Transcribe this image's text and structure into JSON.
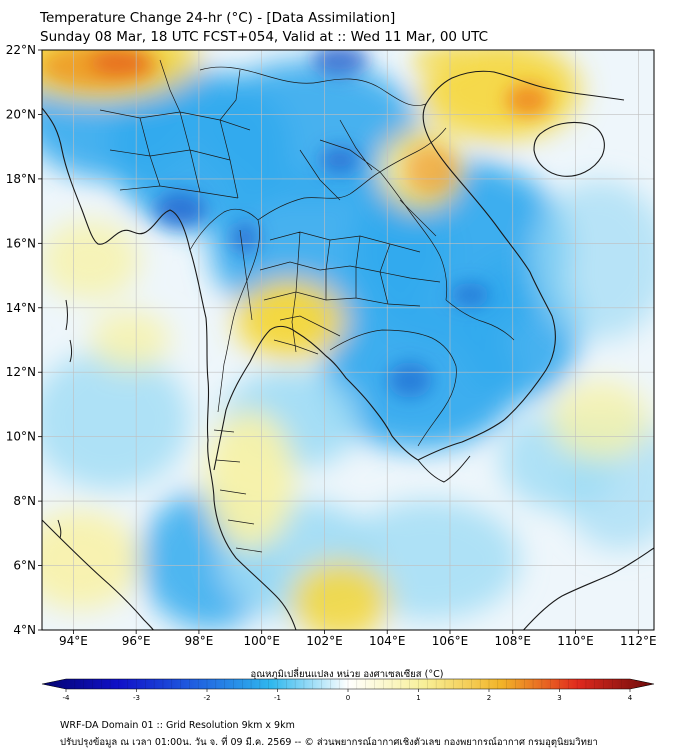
{
  "header": {
    "title_line1": "Temperature Change 24-hr (°C) - [Data Assimilation]",
    "title_line2": "Sunday 08 Mar, 18 UTC FCST+054, Valid at :: Wed 11 Mar, 00 UTC"
  },
  "map": {
    "lat_labels": [
      "22°N",
      "20°N",
      "18°N",
      "16°N",
      "14°N",
      "12°N",
      "10°N",
      "8°N",
      "6°N",
      "4°N"
    ],
    "lon_labels": [
      "94°E",
      "96°E",
      "98°E",
      "100°E",
      "102°E",
      "104°E",
      "106°E",
      "108°E",
      "110°E",
      "112°E"
    ],
    "lat_range": [
      4,
      22
    ],
    "lon_range": [
      93,
      112.5
    ],
    "colors": {
      "cold_strong": "#1a55c8",
      "cold": "#33aaee",
      "cool": "#9fdcf5",
      "neutral": "#eef6fb",
      "warm_light": "#f8f2a8",
      "warm": "#f5d840",
      "hot": "#f08a20",
      "hottest": "#d4241e",
      "grid": "#bfbfbf",
      "border": "#1a1a1a"
    }
  },
  "colorbar": {
    "label": "อุณหภูมิเปลี่ยนแปลง หน่วย องศาเซลเซียส (°C)",
    "ticks": [
      "-4",
      "-3",
      "-2",
      "-1",
      "0",
      "1",
      "2",
      "3",
      "4"
    ],
    "stops": [
      "#050570",
      "#1010c8",
      "#2060e0",
      "#30b8ee",
      "#ffffff",
      "#f8f098",
      "#f2b428",
      "#e02a1e",
      "#6a0a0a"
    ]
  },
  "footer": {
    "line1": "WRF-DA Domain 01 :: Grid Resolution 9km x 9km",
    "line2": "ปรับปรุงข้อมูล ณ เวลา 01:00น. วัน จ. ที่ 09 มี.ค. 2569 -- © ส่วนพยากรณ์อากาศเชิงตัวเลข กองพยากรณ์อากาศ กรมอุตุนิยมวิทยา"
  }
}
